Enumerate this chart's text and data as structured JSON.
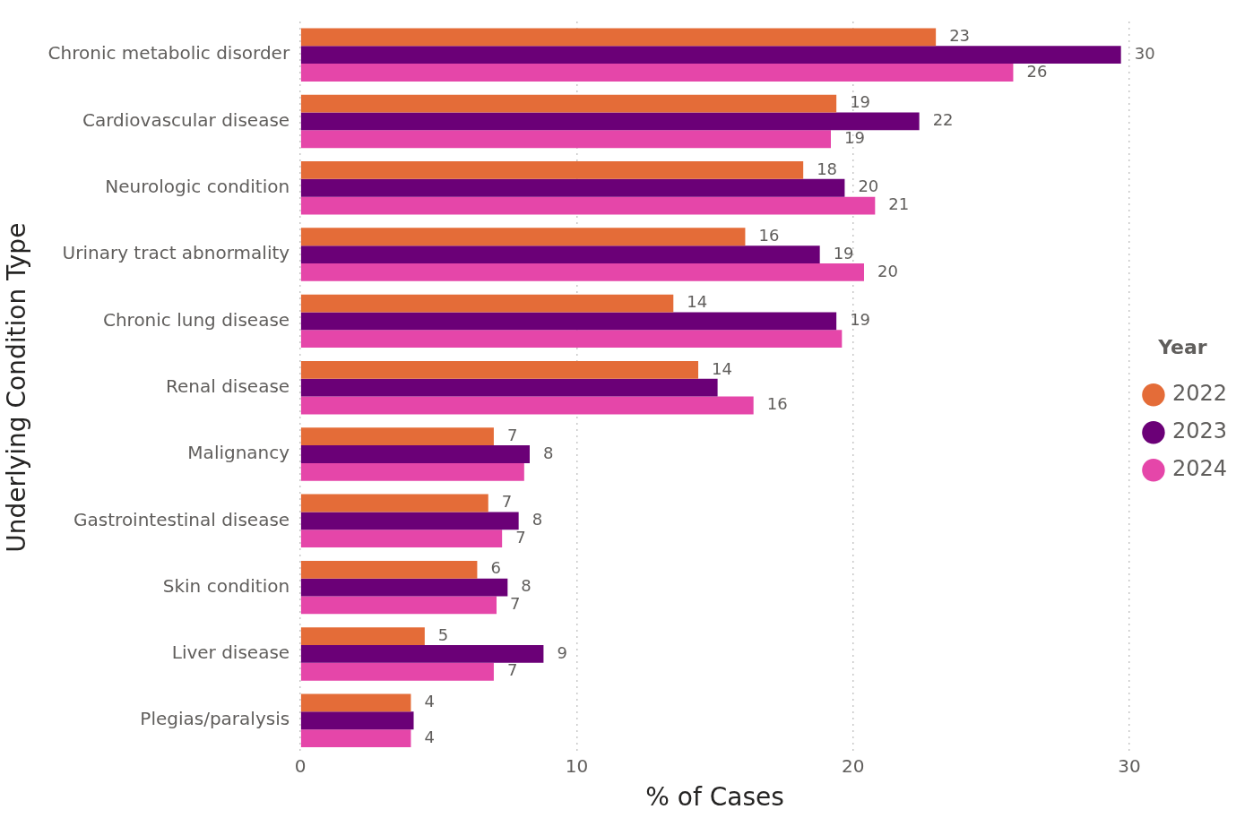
{
  "chart_data": {
    "type": "bar",
    "orientation": "horizontal",
    "xlabel": "% of Cases",
    "ylabel": "Underlying Condition Type",
    "legend_title": "Year",
    "legend": "right",
    "grid": "x",
    "categories": [
      "Chronic metabolic disorder",
      "Cardiovascular disease",
      "Neurologic condition",
      "Urinary tract abnormality",
      "Chronic lung disease",
      "Renal disease",
      "Malignancy",
      "Gastrointestinal disease",
      "Skin condition",
      "Liver disease",
      "Plegias/paralysis"
    ],
    "series": [
      {
        "name": "2022",
        "color": "#e46c38",
        "values": [
          23.0,
          19.4,
          18.2,
          16.1,
          13.5,
          14.4,
          7.0,
          6.8,
          6.4,
          4.5,
          4.0
        ],
        "value_labels": [
          "23",
          "19",
          "18",
          "16",
          "14",
          "14",
          "7",
          "7",
          "6",
          "5",
          "4"
        ]
      },
      {
        "name": "2023",
        "color": "#6b0077",
        "values": [
          29.7,
          22.4,
          19.7,
          18.8,
          19.4,
          15.1,
          8.3,
          7.9,
          7.5,
          8.8,
          4.1
        ],
        "value_labels": [
          "30",
          "22",
          "20",
          "19",
          "19",
          null,
          "8",
          "8",
          "8",
          "9",
          null
        ]
      },
      {
        "name": "2024",
        "color": "#e546a9",
        "values": [
          25.8,
          19.2,
          20.8,
          20.4,
          19.6,
          16.4,
          8.1,
          7.3,
          7.1,
          7.0,
          4.0
        ],
        "value_labels": [
          "26",
          "19",
          "21",
          "20",
          null,
          "16",
          null,
          "7",
          "7",
          "7",
          "4"
        ]
      }
    ],
    "xlim": [
      0,
      30
    ],
    "xticks": [
      0,
      10,
      20,
      30
    ]
  }
}
